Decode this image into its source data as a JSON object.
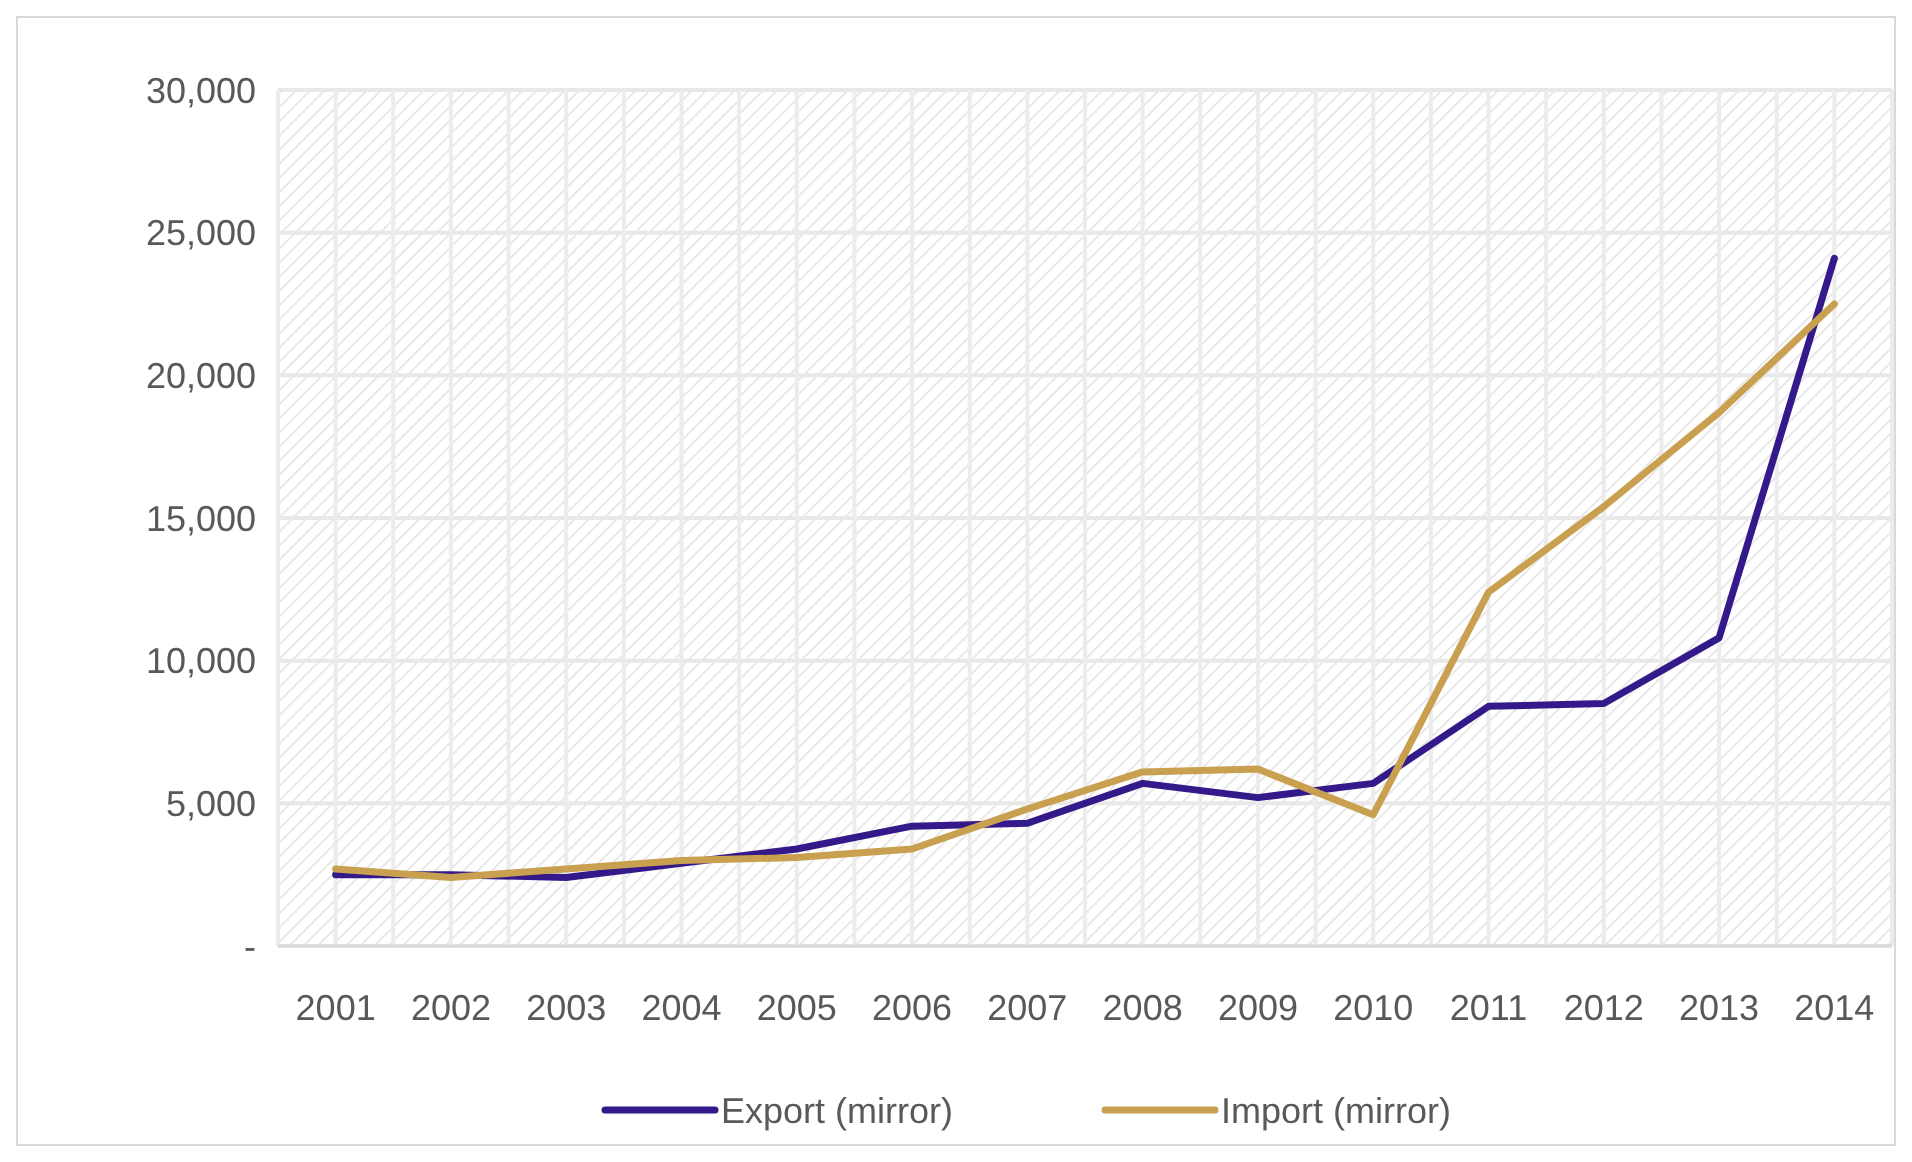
{
  "chart_data": {
    "type": "line",
    "categories": [
      "2001",
      "2002",
      "2003",
      "2004",
      "2005",
      "2006",
      "2007",
      "2008",
      "2009",
      "2010",
      "2011",
      "2012",
      "2013",
      "2014"
    ],
    "series": [
      {
        "name": "Export (mirror)",
        "color": "#33198a",
        "values": [
          2500,
          2500,
          2400,
          2900,
          3400,
          4200,
          4300,
          5700,
          5200,
          5700,
          8400,
          8500,
          10800,
          24100
        ]
      },
      {
        "name": "Import (mirror)",
        "color": "#c9a050",
        "values": [
          2700,
          2400,
          2700,
          3000,
          3100,
          3400,
          4800,
          6100,
          6200,
          4600,
          12400,
          15400,
          18700,
          22500
        ]
      }
    ],
    "ylim": [
      0,
      30000
    ],
    "yticks": [
      {
        "value": 0,
        "label": "-"
      },
      {
        "value": 5000,
        "label": "5,000"
      },
      {
        "value": 10000,
        "label": "10,000"
      },
      {
        "value": 15000,
        "label": "15,000"
      },
      {
        "value": 20000,
        "label": "20,000"
      },
      {
        "value": 25000,
        "label": "25,000"
      },
      {
        "value": 30000,
        "label": "30,000"
      }
    ],
    "grid": true,
    "legend": "bottom",
    "marker": "none",
    "line_style": "solid"
  }
}
